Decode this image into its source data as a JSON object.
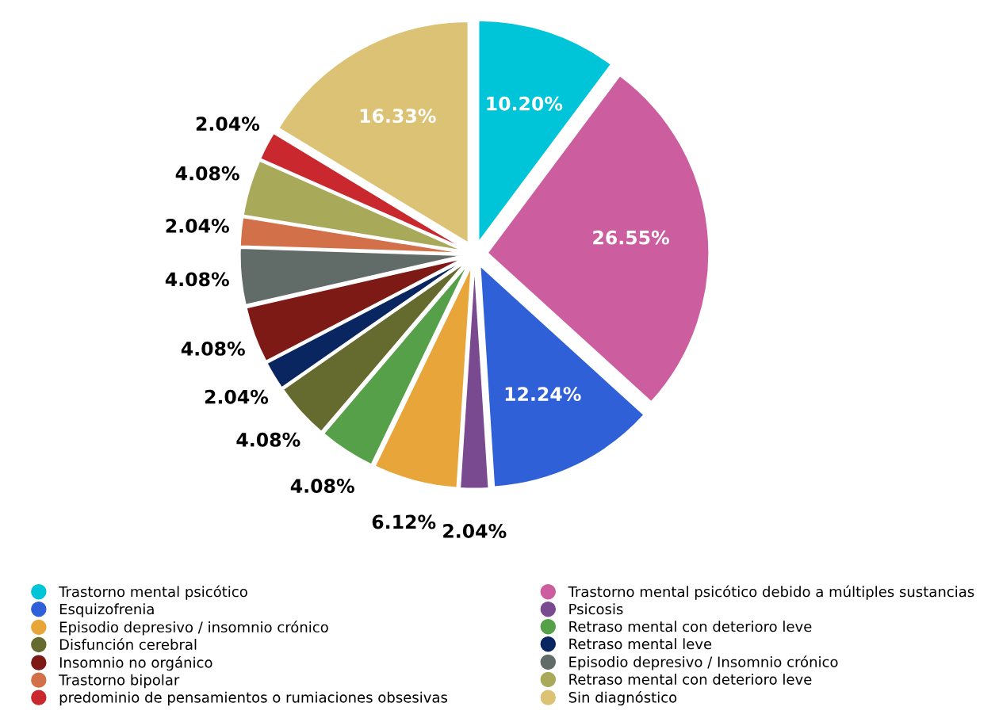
{
  "chart_data": {
    "type": "pie",
    "categories": [
      "Trastorno mental psicótico",
      "Trastorno mental psicótico debido a múltiples sustancias",
      "Esquizofrenia",
      "Psicosis",
      "Episodio depresivo / insomnio crónico",
      "Retraso mental con deterioro leve",
      "Disfunción cerebral",
      "Retraso mental leve",
      "Insomnio no orgánico",
      "Episodio depresivo / Insomnio crónico",
      "Trastorno bipolar",
      "Retraso mental con deterioro leve",
      "predominio de pensamientos o rumiaciones obsesivas",
      "Sin diagnóstico"
    ],
    "values": [
      10.2,
      26.55,
      12.24,
      2.04,
      6.12,
      4.08,
      4.08,
      2.04,
      4.08,
      4.08,
      2.04,
      4.08,
      2.04,
      16.33
    ],
    "value_labels": [
      "10.20%",
      "26.55%",
      "12.24%",
      "2.04%",
      "6.12%",
      "4.08%",
      "4.08%",
      "2.04%",
      "4.08%",
      "4.08%",
      "2.04%",
      "4.08%",
      "2.04%",
      "16.33%"
    ],
    "colors": [
      "#00c4d8",
      "#cc5ea0",
      "#3060d8",
      "#7a4a90",
      "#e8a63a",
      "#56a04a",
      "#656a2e",
      "#0a2660",
      "#7e1a16",
      "#616c68",
      "#d2704a",
      "#a8aa5a",
      "#c8282e",
      "#dcc274"
    ],
    "legend": "bottom"
  }
}
